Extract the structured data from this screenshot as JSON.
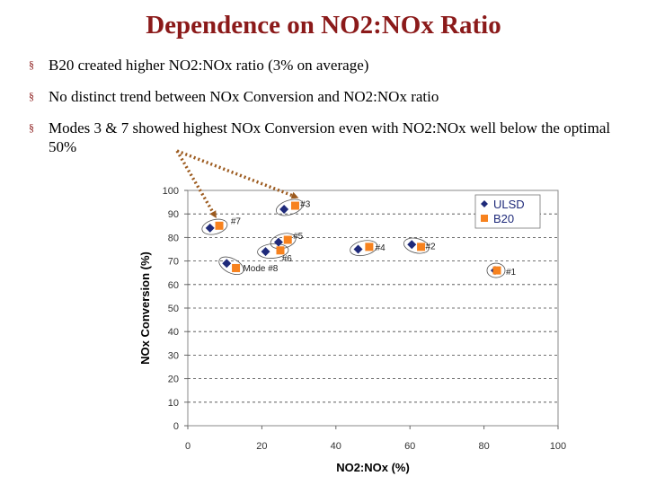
{
  "slide": {
    "title": "Dependence on NO2:NOx Ratio",
    "bullets": [
      "B20 created higher NO2:NOx ratio (3% on average)",
      "No distinct trend between NOx Conversion and NO2:NOx ratio",
      "Modes 3 & 7 showed highest NOx Conversion even with NO2:NOx well below the optimal 50%"
    ],
    "bullet_symbol": "§"
  },
  "chart_data": {
    "type": "scatter",
    "xlabel": "NO2:NOx (%)",
    "ylabel": "NOx Conversion (%)",
    "xlim": [
      0,
      100
    ],
    "ylim": [
      0,
      100
    ],
    "xticks": [
      0,
      20,
      40,
      60,
      80,
      100
    ],
    "yticks": [
      0,
      10,
      20,
      30,
      40,
      50,
      60,
      70,
      80,
      90,
      100
    ],
    "grid": "horizontal-dashed",
    "legend": "top-right",
    "series": [
      {
        "name": "ULSD",
        "color": "#1F2A7A",
        "marker": "diamond",
        "points": [
          {
            "x": 6,
            "y": 84
          },
          {
            "x": 26,
            "y": 92
          },
          {
            "x": 24.5,
            "y": 78
          },
          {
            "x": 21,
            "y": 74
          },
          {
            "x": 10.5,
            "y": 69
          },
          {
            "x": 46,
            "y": 75
          },
          {
            "x": 60.5,
            "y": 77
          },
          {
            "x": 83,
            "y": 66
          }
        ]
      },
      {
        "name": "B20",
        "color": "#F7821E",
        "marker": "square",
        "points": [
          {
            "x": 8.5,
            "y": 85
          },
          {
            "x": 29,
            "y": 93.5
          },
          {
            "x": 27,
            "y": 79
          },
          {
            "x": 25,
            "y": 74.5
          },
          {
            "x": 13,
            "y": 67
          },
          {
            "x": 49,
            "y": 76
          },
          {
            "x": 63,
            "y": 76
          },
          {
            "x": 83.5,
            "y": 66
          }
        ]
      }
    ],
    "annotations": [
      {
        "label": "#7",
        "x": 7,
        "y": 85
      },
      {
        "label": "#3",
        "x": 27,
        "y": 93
      },
      {
        "label": "#5",
        "x": 26,
        "y": 79
      },
      {
        "label": "#6",
        "x": 23,
        "y": 74
      },
      {
        "label": "Mode #8",
        "x": 12,
        "y": 68
      },
      {
        "label": "#4",
        "x": 47,
        "y": 75.5
      },
      {
        "label": "#2",
        "x": 62,
        "y": 76.5
      },
      {
        "label": "#1",
        "x": 83,
        "y": 66
      }
    ],
    "callout_arrows": {
      "color": "#9C5A1E",
      "targets": [
        "#7",
        "#3"
      ]
    }
  }
}
